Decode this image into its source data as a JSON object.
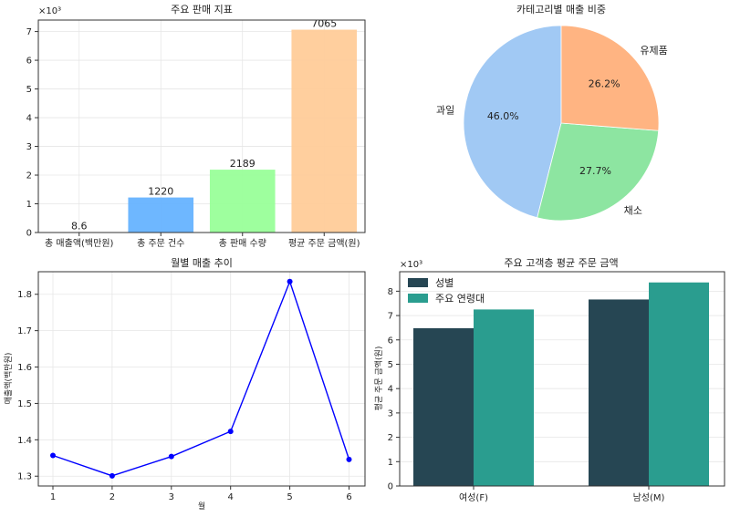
{
  "chart_data": [
    {
      "id": "sales-metrics",
      "type": "bar",
      "title": "주요 판매 지표",
      "offset_label": "×10³",
      "categories": [
        "총 매출액(백만원)",
        "총 주문 건수",
        "총 판매 수량",
        "평균 주문 금액(원)"
      ],
      "values": [
        8.6,
        1220,
        2189,
        7065
      ],
      "value_labels": [
        "8.6",
        "1220",
        "2189",
        "7065"
      ],
      "colors": [
        "#ff9999",
        "#66b3ff",
        "#99ff99",
        "#ffcc99"
      ],
      "yticks": [
        "0",
        "1",
        "2",
        "3",
        "4",
        "5",
        "6",
        "7"
      ],
      "ylim": [
        0,
        7400
      ],
      "grid": true
    },
    {
      "id": "category-share",
      "type": "pie",
      "title": "카테고리별 매출 비중",
      "labels": [
        "과일",
        "채소",
        "유제품"
      ],
      "values": [
        46.0,
        27.7,
        26.2
      ],
      "pct_labels": [
        "46.0%",
        "27.7%",
        "26.2%"
      ],
      "colors": [
        "#a1c9f4",
        "#8de5a1",
        "#ffb482"
      ]
    },
    {
      "id": "monthly-trend",
      "type": "line",
      "title": "월별 매출 추이",
      "xlabel": "월",
      "ylabel": "매출액(백만원)",
      "x": [
        1,
        2,
        3,
        4,
        5,
        6
      ],
      "y": [
        1.357,
        1.301,
        1.354,
        1.423,
        1.835,
        1.346
      ],
      "xticks": [
        "1",
        "2",
        "3",
        "4",
        "5",
        "6"
      ],
      "yticks": [
        "1.3",
        "1.4",
        "1.5",
        "1.6",
        "1.7",
        "1.8"
      ],
      "ylim": [
        1.273,
        1.862
      ],
      "color": "#0000ff",
      "grid": true
    },
    {
      "id": "segment-avg-order",
      "type": "bar",
      "title": "주요 고객층 평균 주문 금액",
      "offset_label": "×10³",
      "ylabel": "평균 주문 금액(원)",
      "categories": [
        "여성(F)",
        "남성(M)"
      ],
      "series": [
        {
          "name": "성별",
          "values": [
            6480,
            7660
          ],
          "color": "#264653"
        },
        {
          "name": "주요 연령대",
          "values": [
            7250,
            8360
          ],
          "color": "#2a9d8f"
        }
      ],
      "yticks": [
        "0",
        "1",
        "2",
        "3",
        "4",
        "5",
        "6",
        "7",
        "8"
      ],
      "ylim": [
        0,
        8800
      ],
      "legend": "top-left",
      "grid": true
    }
  ]
}
